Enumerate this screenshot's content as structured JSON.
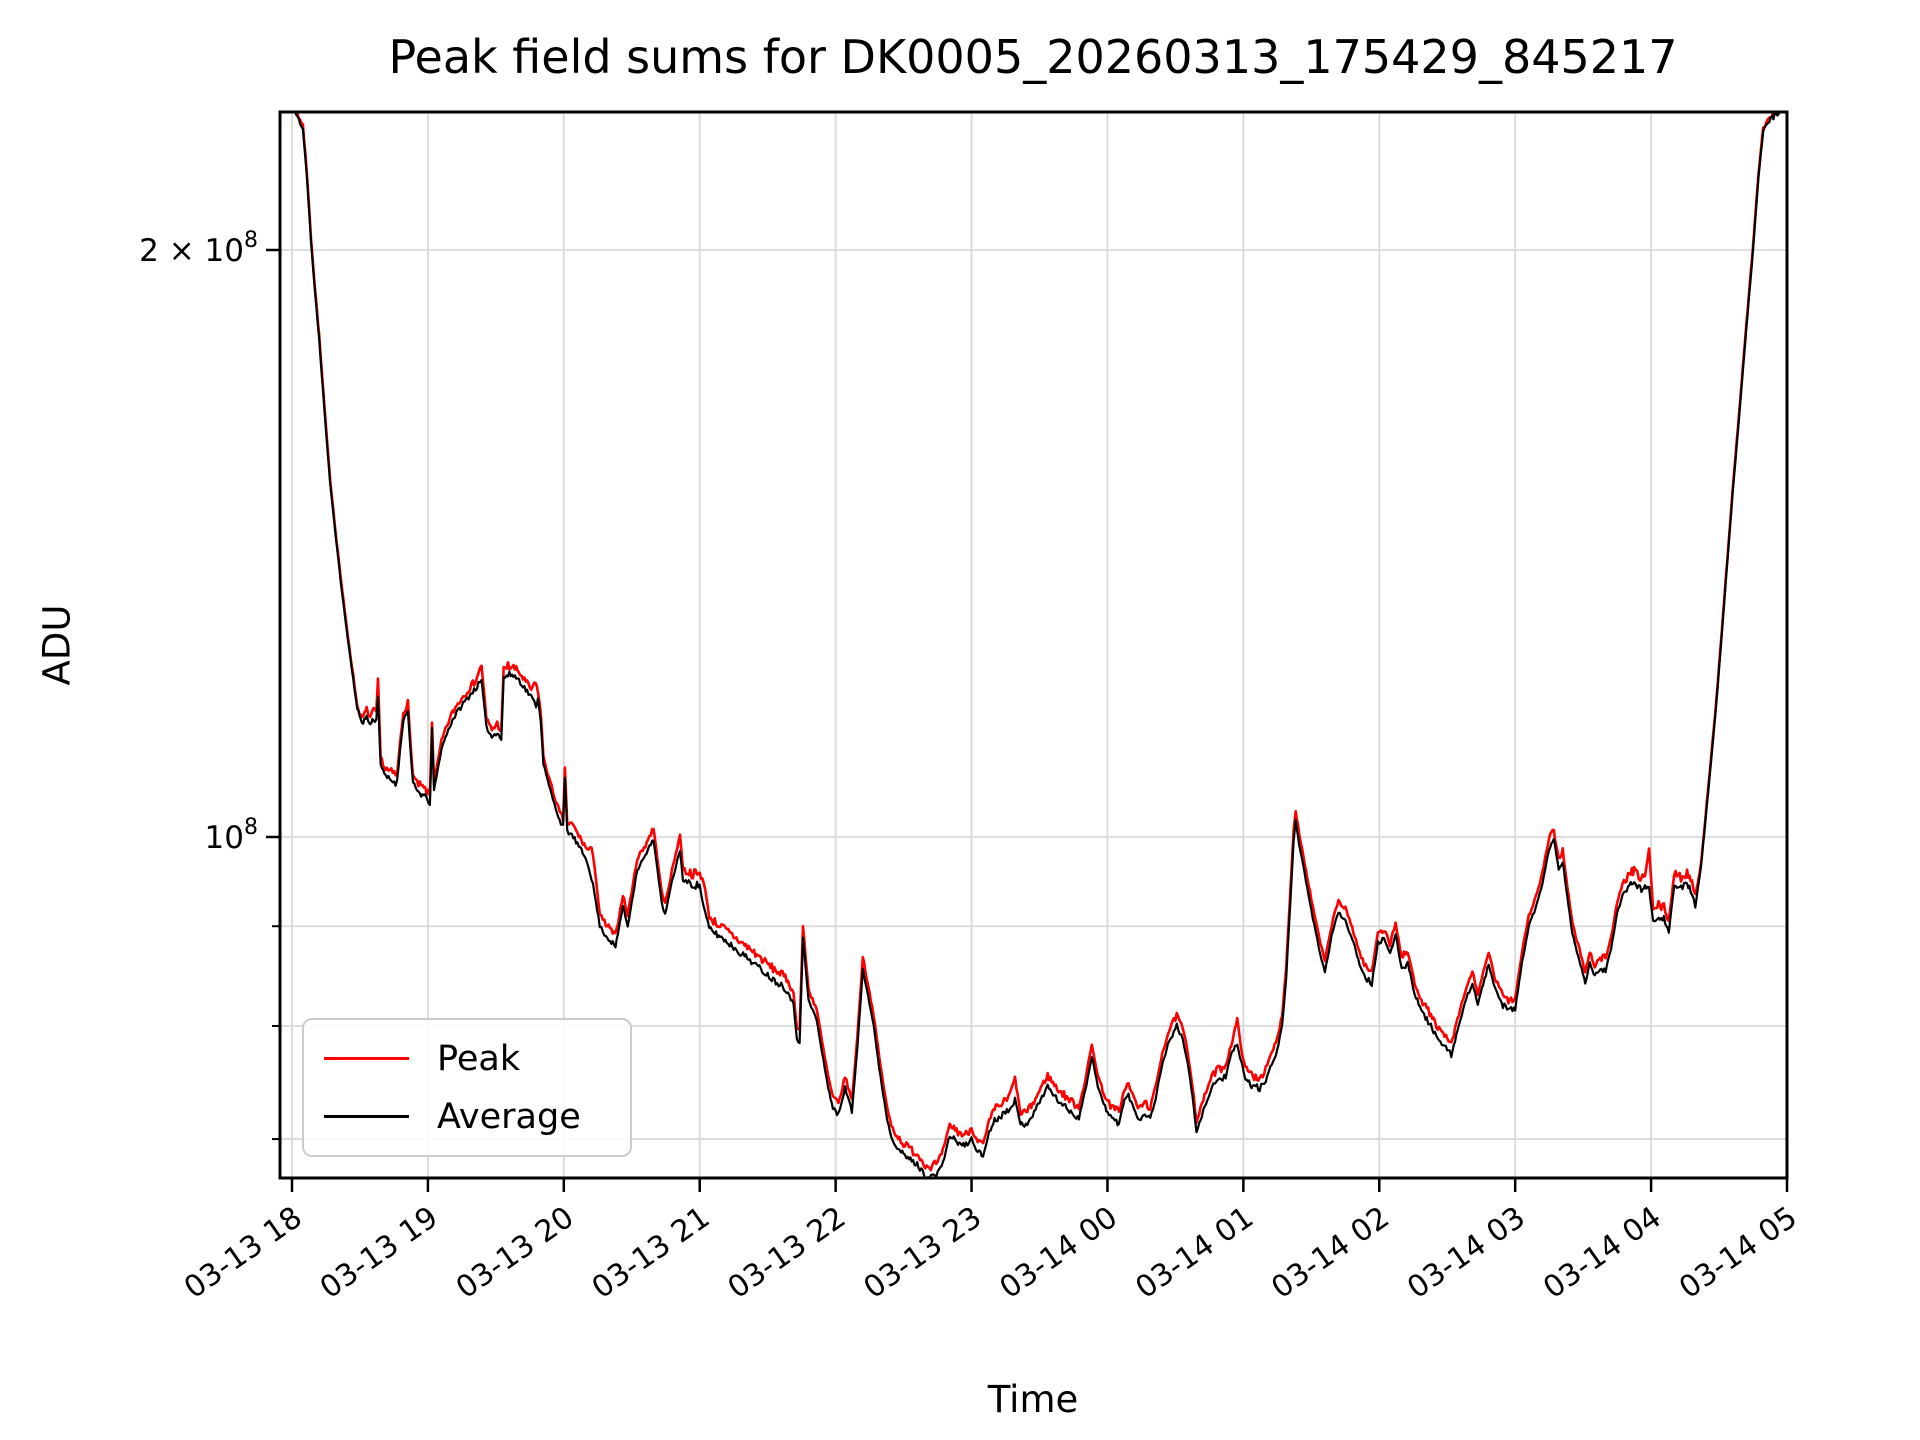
{
  "chart_data": {
    "type": "line",
    "title": "Peak field sums for DK0005_20260313_175429_845217",
    "x_axis": {
      "label": "Time",
      "tick_labels": [
        "03-13 18",
        "03-13 19",
        "03-13 20",
        "03-13 21",
        "03-13 22",
        "03-13 23",
        "03-14 00",
        "03-14 01",
        "03-14 02",
        "03-14 03",
        "03-14 04",
        "03-14 05"
      ],
      "tick_hours": [
        0,
        1,
        2,
        3,
        4,
        5,
        6,
        7,
        8,
        9,
        10,
        11
      ],
      "range_hours": [
        -0.088,
        11.0
      ],
      "grid": true
    },
    "y_axis": {
      "label": "ADU",
      "scale": "log",
      "major_ticks": [
        {
          "value": 200000000.0,
          "base": "2 × 10",
          "exponent": "8"
        },
        {
          "value": 100000000.0,
          "base": "10",
          "exponent": "8"
        }
      ],
      "minor_tick_values": [
        90000000.0,
        80000000.0,
        70000000.0
      ],
      "range": [
        66800000.0,
        235500000.0
      ],
      "grid": true
    },
    "legend": {
      "position": "lower left",
      "entries": [
        {
          "label": "Peak",
          "color": "#ff0000"
        },
        {
          "label": "Average",
          "color": "#000000"
        }
      ]
    },
    "colors": {
      "peak": "#ff0000",
      "average": "#000000",
      "grid": "#d9d9d9",
      "spine": "#000000"
    },
    "time_origin": "2026-03-13 18:00",
    "value_scale": 100000000.0,
    "average_points": [
      [
        -0.09,
        2.5
      ],
      [
        -0.03,
        2.46
      ],
      [
        0.0,
        2.37
      ],
      [
        0.04,
        2.34
      ],
      [
        0.08,
        2.31
      ],
      [
        0.11,
        2.18
      ],
      [
        0.14,
        2.02
      ],
      [
        0.17,
        1.9
      ],
      [
        0.2,
        1.8
      ],
      [
        0.24,
        1.65
      ],
      [
        0.28,
        1.52
      ],
      [
        0.32,
        1.43
      ],
      [
        0.36,
        1.35
      ],
      [
        0.4,
        1.28
      ],
      [
        0.44,
        1.22
      ],
      [
        0.48,
        1.163
      ],
      [
        0.515,
        1.145
      ],
      [
        0.55,
        1.152
      ],
      [
        0.575,
        1.142
      ],
      [
        0.6,
        1.15
      ],
      [
        0.62,
        1.148
      ],
      [
        0.633,
        1.18
      ],
      [
        0.652,
        1.09
      ],
      [
        0.68,
        1.076
      ],
      [
        0.72,
        1.07
      ],
      [
        0.773,
        1.066
      ],
      [
        0.795,
        1.108
      ],
      [
        0.82,
        1.148
      ],
      [
        0.853,
        1.16
      ],
      [
        0.875,
        1.1
      ],
      [
        0.89,
        1.066
      ],
      [
        0.92,
        1.056
      ],
      [
        0.95,
        1.052
      ],
      [
        0.98,
        1.048
      ],
      [
        1.015,
        1.041
      ],
      [
        1.03,
        1.137
      ],
      [
        1.045,
        1.057
      ],
      [
        1.07,
        1.08
      ],
      [
        1.1,
        1.11
      ],
      [
        1.14,
        1.13
      ],
      [
        1.18,
        1.148
      ],
      [
        1.23,
        1.163
      ],
      [
        1.29,
        1.178
      ],
      [
        1.35,
        1.192
      ],
      [
        1.395,
        1.202
      ],
      [
        1.43,
        1.14
      ],
      [
        1.47,
        1.125
      ],
      [
        1.51,
        1.133
      ],
      [
        1.54,
        1.122
      ],
      [
        1.558,
        1.208
      ],
      [
        1.62,
        1.212
      ],
      [
        1.67,
        1.204
      ],
      [
        1.72,
        1.19
      ],
      [
        1.76,
        1.18
      ],
      [
        1.795,
        1.168
      ],
      [
        1.81,
        1.177
      ],
      [
        1.83,
        1.148
      ],
      [
        1.85,
        1.09
      ],
      [
        1.89,
        1.063
      ],
      [
        1.93,
        1.04
      ],
      [
        1.97,
        1.02
      ],
      [
        1.995,
        1.012
      ],
      [
        2.008,
        1.072
      ],
      [
        2.025,
        1.008
      ],
      [
        2.07,
        1.0
      ],
      [
        2.12,
        0.986
      ],
      [
        2.17,
        0.973
      ],
      [
        2.215,
        0.945
      ],
      [
        2.265,
        0.9
      ],
      [
        2.31,
        0.89
      ],
      [
        2.36,
        0.882
      ],
      [
        2.38,
        0.878
      ],
      [
        2.435,
        0.922
      ],
      [
        2.47,
        0.9
      ],
      [
        2.54,
        0.962
      ],
      [
        2.6,
        0.978
      ],
      [
        2.66,
        0.998
      ],
      [
        2.72,
        0.925
      ],
      [
        2.745,
        0.912
      ],
      [
        2.795,
        0.948
      ],
      [
        2.855,
        0.985
      ],
      [
        2.877,
        0.95
      ],
      [
        2.93,
        0.946
      ],
      [
        3.0,
        0.944
      ],
      [
        3.03,
        0.92
      ],
      [
        3.07,
        0.898
      ],
      [
        3.12,
        0.892
      ],
      [
        3.18,
        0.886
      ],
      [
        3.24,
        0.879
      ],
      [
        3.3,
        0.872
      ],
      [
        3.36,
        0.866
      ],
      [
        3.42,
        0.859
      ],
      [
        3.48,
        0.852
      ],
      [
        3.54,
        0.845
      ],
      [
        3.6,
        0.84
      ],
      [
        3.65,
        0.833
      ],
      [
        3.69,
        0.82
      ],
      [
        3.715,
        0.788
      ],
      [
        3.735,
        0.786
      ],
      [
        3.76,
        0.888
      ],
      [
        3.8,
        0.825
      ],
      [
        3.86,
        0.806
      ],
      [
        3.91,
        0.768
      ],
      [
        3.945,
        0.744
      ],
      [
        3.98,
        0.726
      ],
      [
        4.02,
        0.72
      ],
      [
        4.07,
        0.744
      ],
      [
        4.12,
        0.723
      ],
      [
        4.16,
        0.78
      ],
      [
        4.2,
        0.856
      ],
      [
        4.24,
        0.828
      ],
      [
        4.28,
        0.8
      ],
      [
        4.32,
        0.762
      ],
      [
        4.35,
        0.738
      ],
      [
        4.38,
        0.716
      ],
      [
        4.41,
        0.702
      ],
      [
        4.45,
        0.694
      ],
      [
        4.5,
        0.687
      ],
      [
        4.55,
        0.683
      ],
      [
        4.6,
        0.679
      ],
      [
        4.67,
        0.669
      ],
      [
        4.75,
        0.671
      ],
      [
        4.8,
        0.685
      ],
      [
        4.84,
        0.703
      ],
      [
        4.9,
        0.697
      ],
      [
        4.95,
        0.694
      ],
      [
        5.0,
        0.7
      ],
      [
        5.045,
        0.69
      ],
      [
        5.085,
        0.686
      ],
      [
        5.13,
        0.706
      ],
      [
        5.17,
        0.716
      ],
      [
        5.22,
        0.72
      ],
      [
        5.27,
        0.725
      ],
      [
        5.32,
        0.733
      ],
      [
        5.36,
        0.712
      ],
      [
        5.41,
        0.714
      ],
      [
        5.46,
        0.722
      ],
      [
        5.51,
        0.734
      ],
      [
        5.56,
        0.745
      ],
      [
        5.62,
        0.735
      ],
      [
        5.68,
        0.728
      ],
      [
        5.74,
        0.722
      ],
      [
        5.79,
        0.718
      ],
      [
        5.835,
        0.74
      ],
      [
        5.885,
        0.772
      ],
      [
        5.93,
        0.745
      ],
      [
        5.965,
        0.732
      ],
      [
        6.0,
        0.722
      ],
      [
        6.045,
        0.716
      ],
      [
        6.085,
        0.714
      ],
      [
        6.125,
        0.733
      ],
      [
        6.155,
        0.737
      ],
      [
        6.195,
        0.725
      ],
      [
        6.235,
        0.716
      ],
      [
        6.275,
        0.722
      ],
      [
        6.315,
        0.717
      ],
      [
        6.355,
        0.735
      ],
      [
        6.405,
        0.766
      ],
      [
        6.455,
        0.786
      ],
      [
        6.51,
        0.8
      ],
      [
        6.555,
        0.787
      ],
      [
        6.59,
        0.766
      ],
      [
        6.625,
        0.737
      ],
      [
        6.655,
        0.705
      ],
      [
        6.695,
        0.72
      ],
      [
        6.735,
        0.734
      ],
      [
        6.78,
        0.747
      ],
      [
        6.825,
        0.751
      ],
      [
        6.87,
        0.754
      ],
      [
        6.92,
        0.777
      ],
      [
        6.955,
        0.781
      ],
      [
        6.99,
        0.765
      ],
      [
        7.015,
        0.751
      ],
      [
        7.07,
        0.745
      ],
      [
        7.12,
        0.743
      ],
      [
        7.165,
        0.75
      ],
      [
        7.21,
        0.765
      ],
      [
        7.25,
        0.778
      ],
      [
        7.285,
        0.8
      ],
      [
        7.315,
        0.846
      ],
      [
        7.345,
        0.925
      ],
      [
        7.37,
        0.995
      ],
      [
        7.385,
        1.02
      ],
      [
        7.41,
        0.992
      ],
      [
        7.45,
        0.958
      ],
      [
        7.5,
        0.917
      ],
      [
        7.555,
        0.878
      ],
      [
        7.6,
        0.852
      ],
      [
        7.65,
        0.89
      ],
      [
        7.7,
        0.916
      ],
      [
        7.75,
        0.906
      ],
      [
        7.8,
        0.888
      ],
      [
        7.855,
        0.861
      ],
      [
        7.9,
        0.847
      ],
      [
        7.945,
        0.841
      ],
      [
        7.99,
        0.883
      ],
      [
        8.035,
        0.886
      ],
      [
        8.08,
        0.87
      ],
      [
        8.12,
        0.892
      ],
      [
        8.165,
        0.856
      ],
      [
        8.21,
        0.862
      ],
      [
        8.26,
        0.831
      ],
      [
        8.32,
        0.812
      ],
      [
        8.38,
        0.8
      ],
      [
        8.44,
        0.786
      ],
      [
        8.53,
        0.773
      ],
      [
        8.585,
        0.8
      ],
      [
        8.64,
        0.826
      ],
      [
        8.685,
        0.842
      ],
      [
        8.725,
        0.821
      ],
      [
        8.765,
        0.84
      ],
      [
        8.805,
        0.861
      ],
      [
        8.85,
        0.836
      ],
      [
        8.9,
        0.821
      ],
      [
        8.95,
        0.815
      ],
      [
        9.0,
        0.816
      ],
      [
        9.05,
        0.862
      ],
      [
        9.1,
        0.9
      ],
      [
        9.15,
        0.918
      ],
      [
        9.2,
        0.946
      ],
      [
        9.25,
        0.986
      ],
      [
        9.285,
        0.998
      ],
      [
        9.32,
        0.962
      ],
      [
        9.35,
        0.972
      ],
      [
        9.385,
        0.93
      ],
      [
        9.42,
        0.892
      ],
      [
        9.455,
        0.873
      ],
      [
        9.49,
        0.856
      ],
      [
        9.515,
        0.841
      ],
      [
        9.55,
        0.862
      ],
      [
        9.585,
        0.848
      ],
      [
        9.625,
        0.856
      ],
      [
        9.665,
        0.856
      ],
      [
        9.705,
        0.876
      ],
      [
        9.75,
        0.913
      ],
      [
        9.8,
        0.937
      ],
      [
        9.85,
        0.946
      ],
      [
        9.875,
        0.948
      ],
      [
        9.92,
        0.941
      ],
      [
        9.955,
        0.942
      ],
      [
        9.985,
        0.94
      ],
      [
        10.015,
        0.906
      ],
      [
        10.055,
        0.911
      ],
      [
        10.095,
        0.908
      ],
      [
        10.13,
        0.894
      ],
      [
        10.17,
        0.944
      ],
      [
        10.22,
        0.941
      ],
      [
        10.265,
        0.946
      ],
      [
        10.3,
        0.937
      ],
      [
        10.325,
        0.921
      ],
      [
        10.365,
        0.962
      ],
      [
        10.4,
        1.02
      ],
      [
        10.44,
        1.09
      ],
      [
        10.48,
        1.17
      ],
      [
        10.52,
        1.27
      ],
      [
        10.56,
        1.38
      ],
      [
        10.6,
        1.5
      ],
      [
        10.65,
        1.65
      ],
      [
        10.7,
        1.82
      ],
      [
        10.75,
        2.0
      ],
      [
        10.79,
        2.18
      ],
      [
        10.825,
        2.3
      ],
      [
        10.87,
        2.33
      ],
      [
        10.93,
        2.35
      ],
      [
        11.0,
        2.38
      ]
    ],
    "peak_series": {
      "derived_from": "average",
      "ratio_segments": [
        [
          -0.2,
          0.55,
          1.004
        ],
        [
          0.55,
          2.05,
          1.009
        ],
        [
          2.05,
          10.35,
          1.013
        ],
        [
          10.35,
          11.05,
          1.004
        ]
      ],
      "spikes": [
        [
          0.633,
          1.205
        ],
        [
          0.853,
          1.172
        ],
        [
          1.03,
          1.145
        ],
        [
          1.395,
          1.225
        ],
        [
          1.558,
          1.222
        ],
        [
          1.795,
          1.198
        ],
        [
          2.008,
          1.085
        ],
        [
          2.215,
          0.982
        ],
        [
          2.855,
          1.003
        ],
        [
          3.03,
          0.95
        ],
        [
          3.76,
          0.9
        ],
        [
          4.2,
          0.868
        ],
        [
          5.32,
          0.752
        ],
        [
          5.885,
          0.782
        ],
        [
          6.51,
          0.81
        ],
        [
          6.955,
          0.806
        ],
        [
          7.385,
          1.032
        ],
        [
          9.285,
          1.006
        ],
        [
          9.985,
          0.986
        ]
      ]
    },
    "noise": {
      "average_amp": 0.005,
      "peak_amp": 0.0065,
      "seed_average": 11,
      "seed_peak": 7
    }
  }
}
